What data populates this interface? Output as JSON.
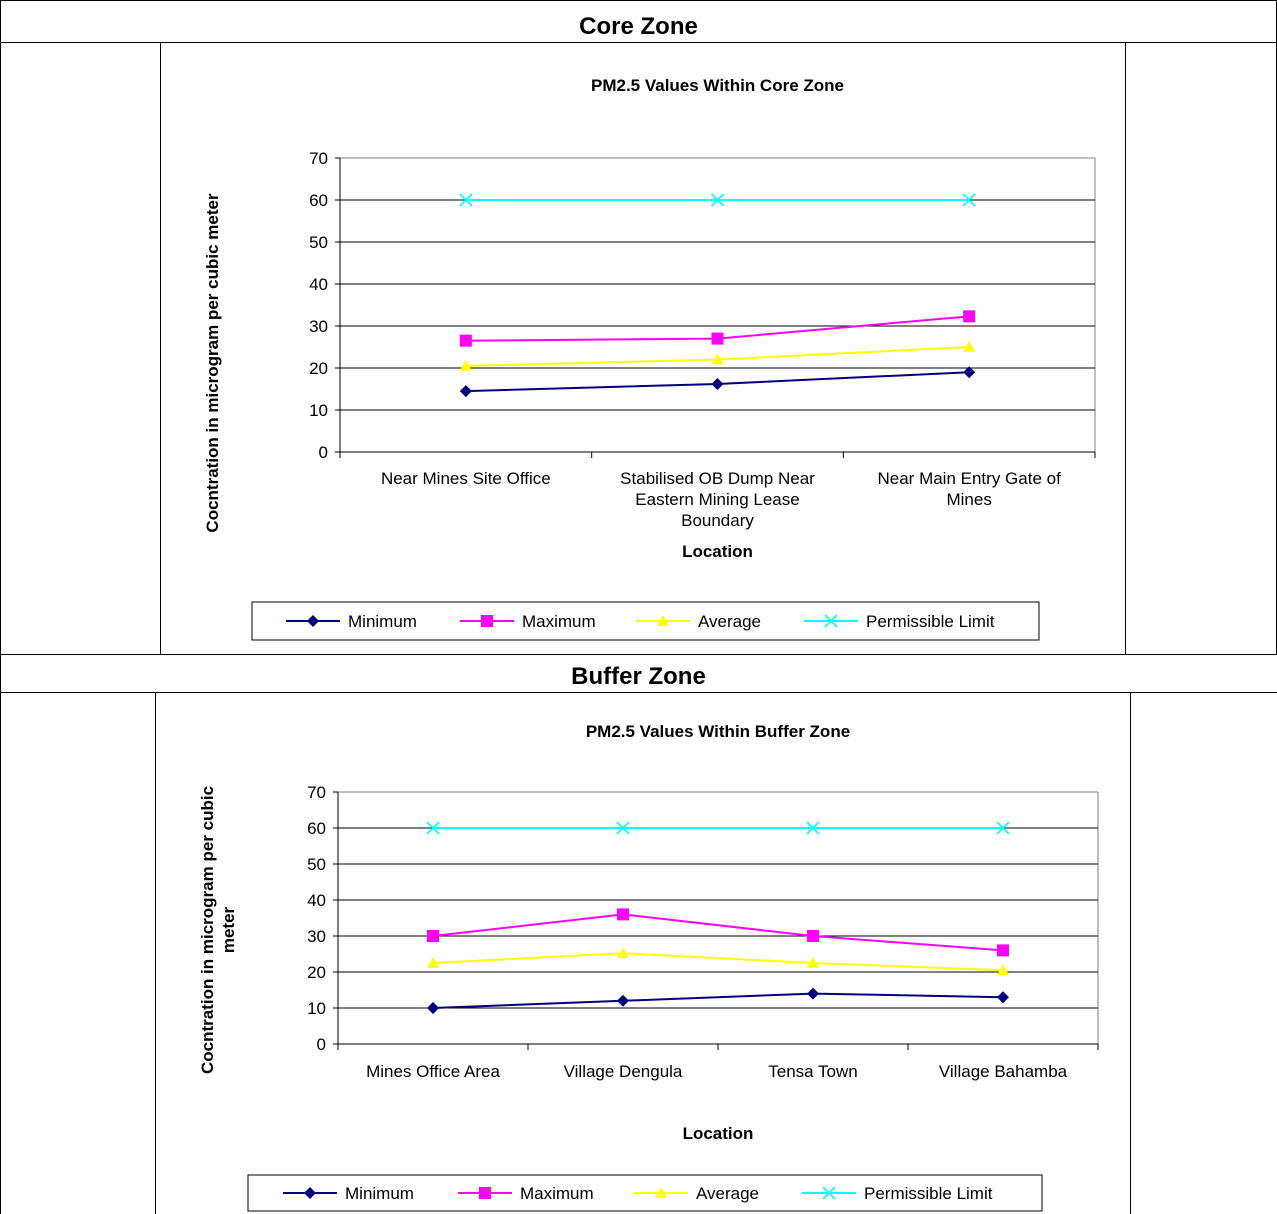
{
  "sections": [
    {
      "header": "Core Zone"
    },
    {
      "header": "Buffer Zone"
    }
  ],
  "colors": {
    "minimum": "#00007f",
    "maximum": "#ff00ff",
    "average": "#ffff00",
    "permissible": "#00ffff"
  },
  "chart_data": [
    {
      "type": "line",
      "title": "PM2.5 Values Within  Core Zone",
      "xlabel": "Location",
      "ylabel": "Cocntration in microgram per cubic meter",
      "ylim": [
        0,
        70
      ],
      "yticks": [
        "0",
        "10",
        "20",
        "30",
        "40",
        "50",
        "60",
        "70"
      ],
      "grid": true,
      "legend": "bottom",
      "categories": [
        [
          "Near Mines Site Office"
        ],
        [
          "Stabilised OB Dump Near",
          "Eastern Mining Lease",
          "Boundary"
        ],
        [
          "Near Main Entry Gate of",
          "Mines"
        ]
      ],
      "series": [
        {
          "name": "Minimum",
          "values": [
            14.5,
            16.2,
            19.0
          ]
        },
        {
          "name": "Maximum",
          "values": [
            26.5,
            27.0,
            32.3
          ]
        },
        {
          "name": "Average",
          "values": [
            20.5,
            22.0,
            25.0
          ]
        },
        {
          "name": "Permissible Limit",
          "values": [
            60,
            60,
            60
          ]
        }
      ]
    },
    {
      "type": "line",
      "title": "PM2.5 Values Within  Buffer  Zone",
      "xlabel": "Location",
      "ylabel": [
        "Cocntration in microgram per cubic",
        "meter"
      ],
      "ylim": [
        0,
        70
      ],
      "yticks": [
        "0",
        "10",
        "20",
        "30",
        "40",
        "50",
        "60",
        "70"
      ],
      "grid": true,
      "legend": "bottom",
      "categories": [
        [
          "Mines Office Area"
        ],
        [
          "Village Dengula"
        ],
        [
          "Tensa Town"
        ],
        [
          "Village Bahamba"
        ]
      ],
      "series": [
        {
          "name": "Minimum",
          "values": [
            10,
            12,
            14,
            13
          ]
        },
        {
          "name": "Maximum",
          "values": [
            30,
            36,
            30,
            26
          ]
        },
        {
          "name": "Average",
          "values": [
            22.5,
            25.2,
            22.5,
            20.5
          ]
        },
        {
          "name": "Permissible Limit",
          "values": [
            60,
            60,
            60,
            60
          ]
        }
      ]
    }
  ]
}
